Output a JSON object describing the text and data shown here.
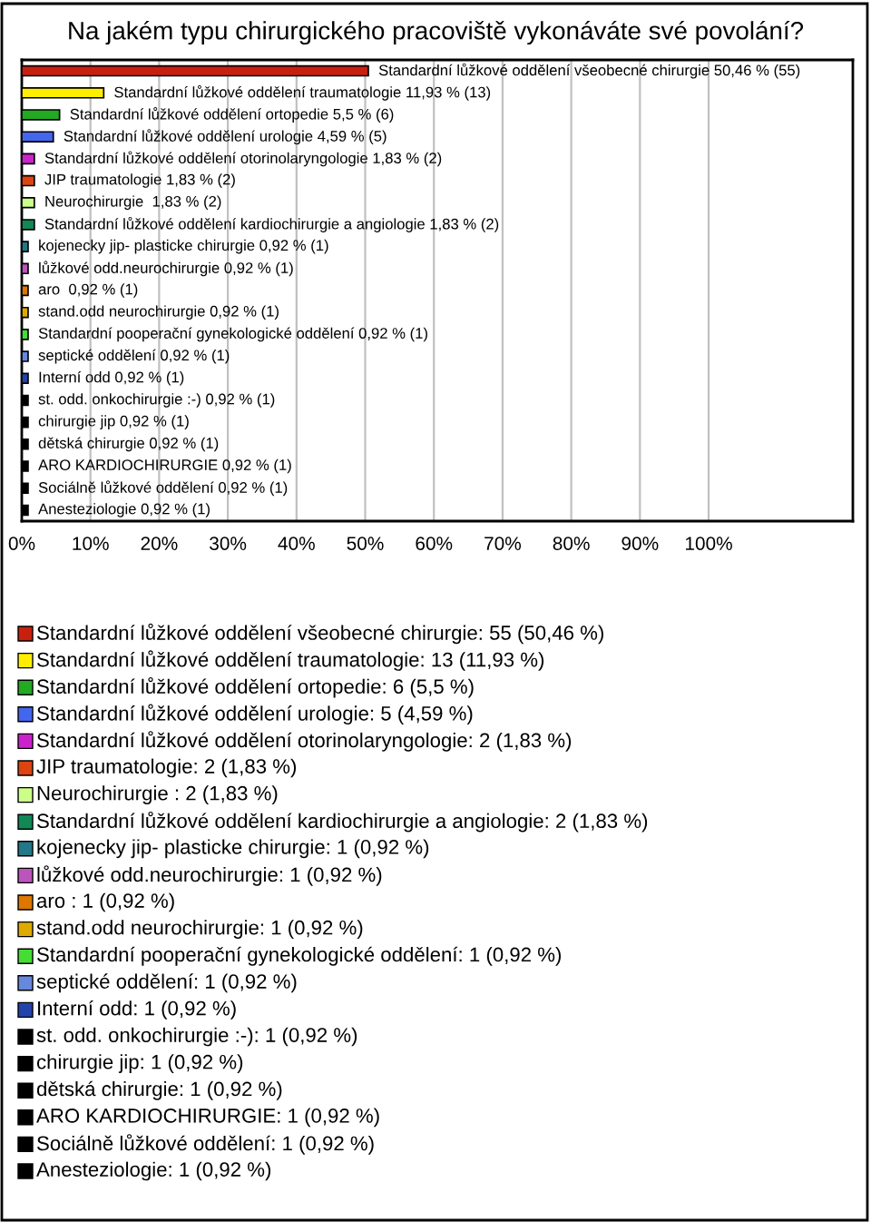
{
  "chart_data": {
    "type": "bar",
    "orientation": "horizontal",
    "title": "Na jakém typu chirurgického pracoviště vykonáváte své povolání?",
    "categories": [
      null,
      null,
      null,
      null,
      null,
      null,
      null,
      null,
      null,
      null,
      null,
      null,
      null,
      null,
      null,
      null,
      null,
      null,
      null,
      null,
      null
    ],
    "values": [
      50.46,
      11.93,
      5.5,
      4.59,
      1.83,
      1.83,
      1.83,
      1.83,
      0.92,
      0.92,
      0.92,
      0.92,
      0.92,
      0.92,
      0.92,
      0.92,
      0.92,
      0.92,
      0.92,
      0.92,
      0.92
    ],
    "colors": [
      "#c8200f",
      "#ffee00",
      "#22aa22",
      "#4466ee",
      "#cc22cc",
      "#dd4411",
      "#ccff88",
      "#118855",
      "#227788",
      "#bb55bb",
      "#dd7700",
      "#ddaa00",
      "#44dd33",
      "#6688dd",
      "#2244aa",
      "#000000",
      "#000000",
      "#000000",
      "#000000",
      "#000000",
      "#000000"
    ],
    "value_labels": [
      "Standardní lůžkové oddělení všeobecné chirurgie 50,46 % (55)",
      "Standardní lůžkové oddělení traumatologie 11,93 % (13)",
      "Standardní lůžkové oddělení ortopedie 5,5 % (6)",
      "Standardní lůžkové oddělení urologie 4,59 % (5)",
      "Standardní lůžkové oddělení otorinolaryngologie 1,83 % (2)",
      "JIP traumatologie 1,83 % (2)",
      "Neurochirurgie  1,83 % (2)",
      "Standardní lůžkové oddělení kardiochirurgie a angiologie 1,83 % (2)",
      "kojenecky jip- plasticke chirurgie 0,92 % (1)",
      "lůžkové odd.neurochirurgie 0,92 % (1)",
      "aro  0,92 % (1)",
      "stand.odd neurochirurgie 0,92 % (1)",
      "Standardní pooperační gynekologické oddělení 0,92 % (1)",
      "septické oddělení 0,92 % (1)",
      "Interní odd 0,92 % (1)",
      "st. odd. onkochirurgie :-) 0,92 % (1)",
      "chirurgie jip 0,92 % (1)",
      "dětská chirurgie 0,92 % (1)",
      "ARO KARDIOCHIRURGIE 0,92 % (1)",
      "Sociálně lůžkové oddělení 0,92 % (1)",
      "Anesteziologie 0,92 % (1)"
    ],
    "annotations": [
      "Standardní lůžkové oddělení všeobecné chirurgie: 55 (50,46 %)",
      "Standardní lůžkové oddělení traumatologie: 13 (11,93 %)",
      "Standardní lůžkové oddělení ortopedie: 6 (5,5 %)",
      "Standardní lůžkové oddělení urologie: 5 (4,59 %)",
      "Standardní lůžkové oddělení otorinolaryngologie: 2 (1,83 %)",
      "JIP traumatologie: 2 (1,83 %)",
      "Neurochirurgie : 2 (1,83 %)",
      "Standardní lůžkové oddělení kardiochirurgie a angiologie: 2 (1,83 %)",
      "kojenecky jip- plasticke chirurgie: 1 (0,92 %)",
      "lůžkové odd.neurochirurgie: 1 (0,92 %)",
      "aro : 1 (0,92 %)",
      "stand.odd neurochirurgie: 1 (0,92 %)",
      "Standardní pooperační gynekologické oddělení: 1 (0,92 %)",
      "septické oddělení: 1 (0,92 %)",
      "Interní odd: 1 (0,92 %)",
      "st. odd. onkochirurgie :-): 1 (0,92 %)",
      "chirurgie jip: 1 (0,92 %)",
      "dětská chirurgie: 1 (0,92 %)",
      "ARO KARDIOCHIRURGIE: 1 (0,92 %)",
      "Sociálně lůžkové oddělení: 1 (0,92 %)",
      "Anesteziologie: 1 (0,92 %)"
    ],
    "xlim": [
      0,
      121
    ],
    "xticks": [
      {
        "value": 0,
        "label": "0%"
      },
      {
        "value": 10,
        "label": "10%"
      },
      {
        "value": 20,
        "label": "20%"
      },
      {
        "value": 30,
        "label": "30%"
      },
      {
        "value": 40,
        "label": "40%"
      },
      {
        "value": 50,
        "label": "50%"
      },
      {
        "value": 60,
        "label": "60%"
      },
      {
        "value": 70,
        "label": "70%"
      },
      {
        "value": 80,
        "label": "80%"
      },
      {
        "value": 90,
        "label": "90%"
      },
      {
        "value": 100,
        "label": "100%"
      }
    ],
    "grid": "x",
    "tick_labels": "x"
  }
}
